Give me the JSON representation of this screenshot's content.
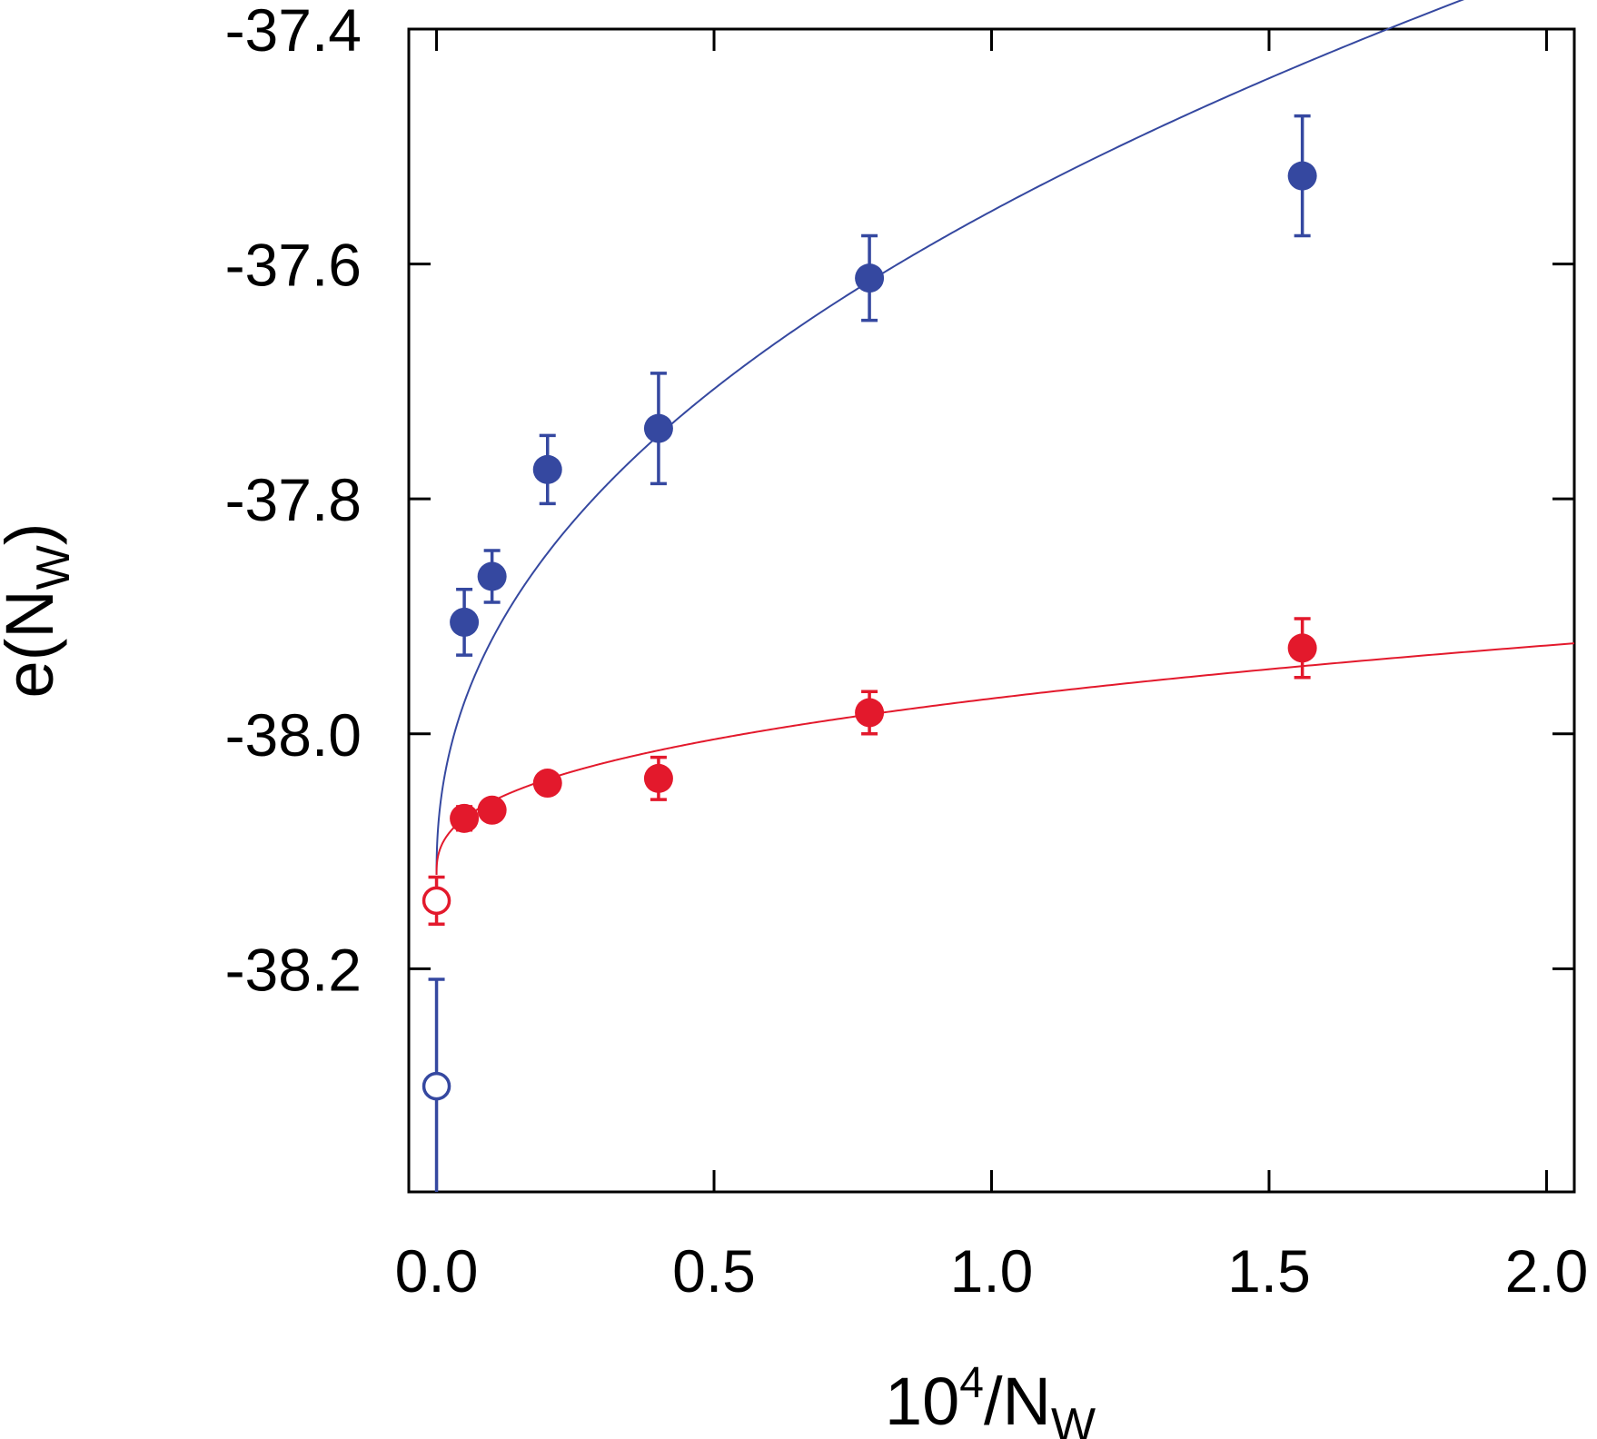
{
  "chart_data": {
    "type": "scatter",
    "title": "",
    "xlabel": {
      "base": "10",
      "sup": "4",
      "mid": "/N",
      "sub": "W"
    },
    "ylabel": {
      "pre": "e(N",
      "sub": "W",
      "post": ")"
    },
    "xlim": [
      -0.05,
      2.05
    ],
    "ylim": [
      -38.39,
      -37.4
    ],
    "xticks": [
      0.0,
      0.5,
      1.0,
      1.5,
      2.0
    ],
    "xtick_labels": [
      "0.0",
      "0.5",
      "1.0",
      "1.5",
      "2.0"
    ],
    "yticks": [
      -37.4,
      -37.6,
      -37.8,
      -38.0,
      -38.2
    ],
    "ytick_labels": [
      "-37.4",
      "-37.6",
      "-37.8",
      "-38.0",
      "-38.2"
    ],
    "grid": false,
    "legend": "none",
    "series": [
      {
        "color": "#3548a0",
        "points": [
          {
            "x": 0.05,
            "y": -37.905,
            "err": 0.028
          },
          {
            "x": 0.1,
            "y": -37.866,
            "err": 0.022
          },
          {
            "x": 0.2,
            "y": -37.775,
            "err": 0.029
          },
          {
            "x": 0.4,
            "y": -37.74,
            "err": 0.047
          },
          {
            "x": 0.78,
            "y": -37.612,
            "err": 0.036
          },
          {
            "x": 1.56,
            "y": -37.525,
            "err": 0.051
          }
        ],
        "extrapolated": {
          "x": 0.0,
          "y": -38.3,
          "err": 0.091
        },
        "fit": {
          "form": "a+b*x^c",
          "a": -38.12,
          "b": 0.565,
          "c": 0.45
        }
      },
      {
        "color": "#e3192c",
        "points": [
          {
            "x": 0.05,
            "y": -38.072,
            "err": 0.01
          },
          {
            "x": 0.1,
            "y": -38.065,
            "err": 0.008
          },
          {
            "x": 0.2,
            "y": -38.042,
            "err": 0.008
          },
          {
            "x": 0.4,
            "y": -38.038,
            "err": 0.018
          },
          {
            "x": 0.78,
            "y": -37.982,
            "err": 0.018
          },
          {
            "x": 1.56,
            "y": -37.927,
            "err": 0.025
          }
        ],
        "extrapolated": {
          "x": 0.0,
          "y": -38.142,
          "err": 0.02
        },
        "fit": {
          "form": "a+b*x^c",
          "a": -38.12,
          "b": 0.15,
          "c": 0.38
        }
      }
    ]
  }
}
